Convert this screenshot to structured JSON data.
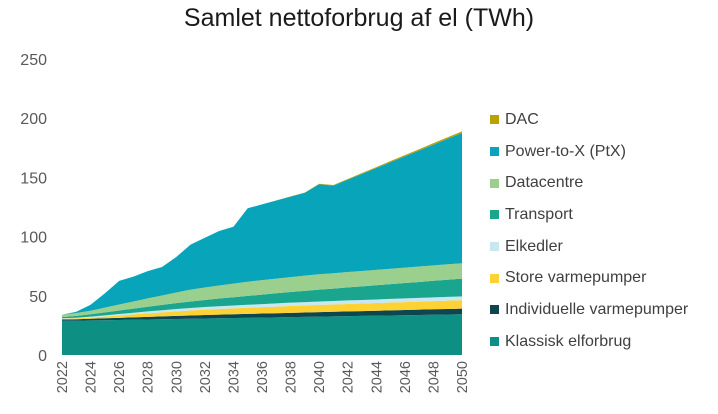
{
  "chart_data": {
    "type": "area",
    "stacked": true,
    "title": "Samlet nettoforbrug af el (TWh)",
    "xlabel": "",
    "ylabel": "",
    "x": [
      2022,
      2023,
      2024,
      2025,
      2026,
      2027,
      2028,
      2029,
      2030,
      2031,
      2032,
      2033,
      2034,
      2035,
      2036,
      2037,
      2038,
      2039,
      2040,
      2041,
      2042,
      2043,
      2044,
      2045,
      2046,
      2047,
      2048,
      2049,
      2050
    ],
    "x_tick_labels": [
      "2022",
      "2024",
      "2026",
      "2028",
      "2030",
      "2032",
      "2034",
      "2036",
      "2038",
      "2040",
      "2042",
      "2044",
      "2046",
      "2048",
      "2050"
    ],
    "ylim": [
      0,
      250
    ],
    "y_ticks": [
      0,
      50,
      100,
      150,
      200,
      250
    ],
    "grid": false,
    "legend_position": "right",
    "series": [
      {
        "name": "Klassisk elforbrug",
        "color": "#0E8F83",
        "values": [
          29,
          29,
          29.2,
          29.4,
          29.6,
          29.8,
          30,
          30.2,
          30.4,
          30.6,
          30.8,
          31,
          31.2,
          31.4,
          31.6,
          31.8,
          32,
          32.2,
          32.4,
          32.6,
          32.8,
          33,
          33.2,
          33.4,
          33.6,
          33.8,
          34,
          34.2,
          34.4
        ]
      },
      {
        "name": "Individuelle varmepumper",
        "color": "#0E4650",
        "values": [
          1,
          1.2,
          1.4,
          1.6,
          1.8,
          2,
          2.2,
          2.4,
          2.6,
          2.8,
          3,
          3.1,
          3.2,
          3.3,
          3.4,
          3.5,
          3.6,
          3.7,
          3.8,
          3.9,
          4,
          4.1,
          4.2,
          4.3,
          4.4,
          4.5,
          4.6,
          4.7,
          4.8
        ]
      },
      {
        "name": "Store varmepumper",
        "color": "#FFD234",
        "values": [
          0.5,
          0.7,
          1,
          1.5,
          2,
          2.5,
          3,
          3.4,
          3.8,
          4.2,
          4.5,
          4.8,
          5,
          5.2,
          5.4,
          5.6,
          5.8,
          6,
          6.1,
          6.2,
          6.3,
          6.4,
          6.5,
          6.6,
          6.7,
          6.8,
          6.9,
          7,
          7.1
        ]
      },
      {
        "name": "Elkedler",
        "color": "#C7E7F2",
        "values": [
          0.5,
          0.6,
          0.8,
          1,
          1.2,
          1.4,
          1.6,
          1.8,
          2,
          2.1,
          2.2,
          2.3,
          2.4,
          2.5,
          2.6,
          2.7,
          2.8,
          2.8,
          2.9,
          2.9,
          3,
          3,
          3,
          3.1,
          3.1,
          3.1,
          3.2,
          3.2,
          3.2
        ]
      },
      {
        "name": "Transport",
        "color": "#1AA58E",
        "values": [
          1,
          1.5,
          2,
          2.5,
          3,
          3.5,
          4,
          4.5,
          5,
          5.5,
          6,
          6.5,
          7,
          7.5,
          8,
          8.5,
          9,
          9.5,
          10,
          10.5,
          11,
          11.5,
          12,
          12.5,
          13,
          13.5,
          14,
          14.5,
          15
        ]
      },
      {
        "name": "Datacentre",
        "color": "#9BCF8E",
        "values": [
          2,
          2.5,
          3,
          4,
          5,
          6,
          7,
          8,
          9,
          10,
          10.5,
          11,
          11.5,
          12,
          12.2,
          12.4,
          12.6,
          12.8,
          13,
          13,
          13,
          13,
          13,
          13,
          13,
          13,
          13,
          13,
          13
        ]
      },
      {
        "name": "Power-to-X (PtX)",
        "color": "#07A4BA",
        "values": [
          0,
          1,
          5,
          12,
          20,
          21,
          23,
          24,
          30,
          38,
          42,
          46,
          48,
          62,
          64,
          66,
          68,
          70,
          76,
          74,
          78,
          82,
          86,
          90,
          94,
          98,
          102,
          106,
          110
        ]
      },
      {
        "name": "DAC",
        "color": "#B8A200",
        "values": [
          0,
          0,
          0,
          0,
          0,
          0,
          0,
          0,
          0,
          0,
          0,
          0,
          0,
          0,
          0,
          0.1,
          0.2,
          0.3,
          0.4,
          0.5,
          0.6,
          0.7,
          0.8,
          0.9,
          1,
          1.1,
          1.2,
          1.3,
          1.4
        ]
      }
    ]
  }
}
